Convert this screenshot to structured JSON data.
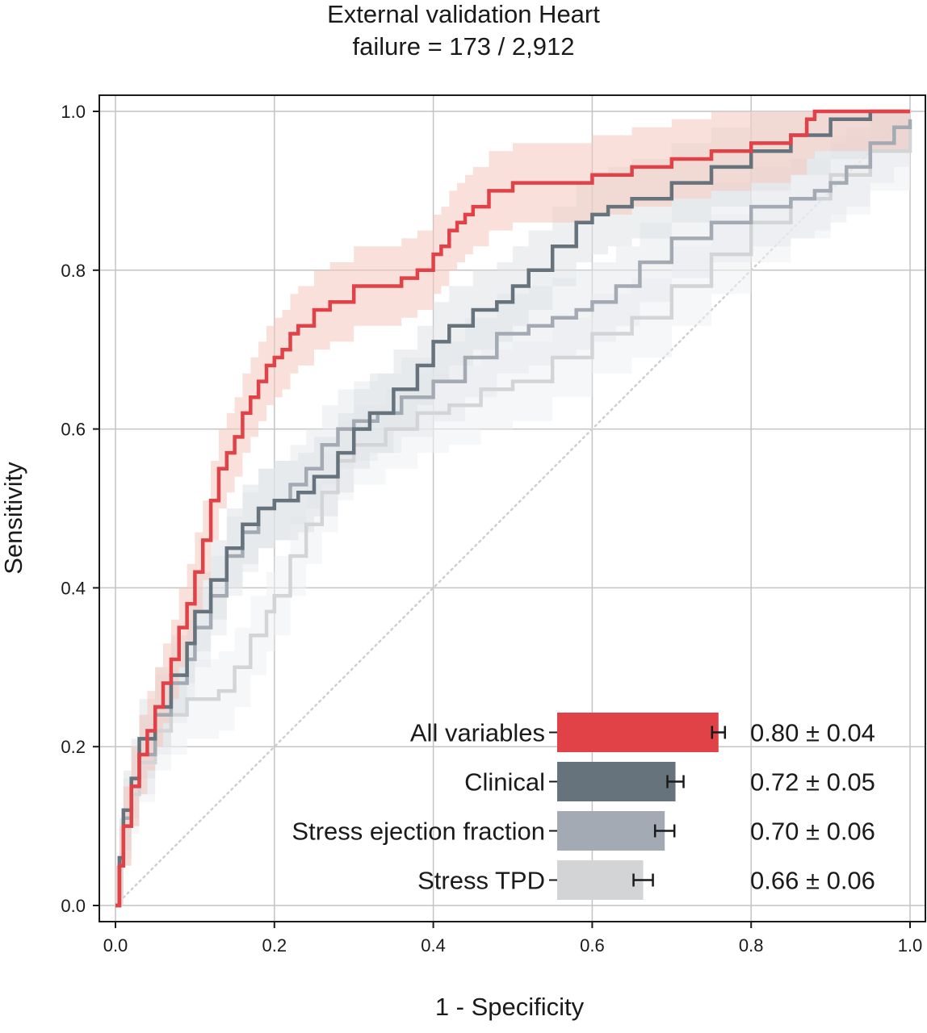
{
  "chart_data": {
    "type": "line",
    "title": "External validation Heart failure = 173 / 2,912",
    "title_lines": [
      "External validation Heart",
      "failure = 173 / 2,912"
    ],
    "xlabel": "1 - Specificity",
    "ylabel": "Sensitivity",
    "xlim": [
      0,
      1.0
    ],
    "ylim": [
      0,
      1.0
    ],
    "xticks": [
      "0.0",
      "0.2",
      "0.4",
      "0.6",
      "0.8",
      "1.0"
    ],
    "yticks": [
      "0.0",
      "0.2",
      "0.4",
      "0.6",
      "0.8",
      "1.0"
    ],
    "grid": true,
    "reference_line": {
      "x": [
        0,
        1
      ],
      "y": [
        0,
        1
      ],
      "style": "dotted"
    },
    "series": [
      {
        "name": "All variables",
        "color": "#e04248",
        "band_color": "#f4c6bc",
        "auc_label": "0.80 ± 0.04",
        "auc": 0.8,
        "auc_err": 0.04,
        "x": [
          0,
          0.005,
          0.01,
          0.02,
          0.03,
          0.04,
          0.05,
          0.06,
          0.07,
          0.08,
          0.09,
          0.1,
          0.11,
          0.12,
          0.13,
          0.14,
          0.15,
          0.16,
          0.17,
          0.18,
          0.19,
          0.2,
          0.21,
          0.22,
          0.23,
          0.25,
          0.27,
          0.3,
          0.33,
          0.36,
          0.38,
          0.4,
          0.41,
          0.42,
          0.43,
          0.44,
          0.45,
          0.47,
          0.5,
          0.55,
          0.6,
          0.65,
          0.7,
          0.75,
          0.8,
          0.85,
          0.87,
          0.88,
          0.89,
          1.0
        ],
        "y": [
          0,
          0.05,
          0.1,
          0.15,
          0.19,
          0.22,
          0.25,
          0.28,
          0.31,
          0.35,
          0.38,
          0.42,
          0.46,
          0.51,
          0.55,
          0.57,
          0.59,
          0.62,
          0.64,
          0.66,
          0.68,
          0.69,
          0.7,
          0.72,
          0.73,
          0.75,
          0.76,
          0.78,
          0.78,
          0.79,
          0.8,
          0.82,
          0.83,
          0.85,
          0.86,
          0.87,
          0.88,
          0.9,
          0.91,
          0.91,
          0.92,
          0.93,
          0.94,
          0.95,
          0.96,
          0.97,
          0.99,
          1.0,
          1.0,
          1.0
        ]
      },
      {
        "name": "Clinical",
        "color": "#66737c",
        "band_color": "#dfe2e6",
        "auc_label": "0.72 ± 0.05",
        "auc": 0.72,
        "auc_err": 0.05,
        "x": [
          0,
          0.005,
          0.01,
          0.02,
          0.03,
          0.05,
          0.07,
          0.09,
          0.1,
          0.12,
          0.14,
          0.16,
          0.18,
          0.2,
          0.23,
          0.25,
          0.28,
          0.3,
          0.32,
          0.35,
          0.38,
          0.4,
          0.42,
          0.45,
          0.48,
          0.5,
          0.52,
          0.55,
          0.58,
          0.6,
          0.62,
          0.65,
          0.7,
          0.75,
          0.8,
          0.85,
          0.9,
          0.95,
          1.0
        ],
        "y": [
          0,
          0.06,
          0.12,
          0.16,
          0.21,
          0.25,
          0.29,
          0.33,
          0.37,
          0.41,
          0.45,
          0.48,
          0.5,
          0.51,
          0.52,
          0.54,
          0.57,
          0.6,
          0.62,
          0.65,
          0.68,
          0.71,
          0.73,
          0.75,
          0.76,
          0.78,
          0.8,
          0.83,
          0.86,
          0.87,
          0.88,
          0.89,
          0.91,
          0.93,
          0.95,
          0.97,
          0.99,
          1.0,
          1.0
        ]
      },
      {
        "name": "Stress ejection fraction",
        "color": "#a4aab3",
        "band_color": "#e6e9ed",
        "auc_label": "0.70 ± 0.06",
        "auc": 0.7,
        "auc_err": 0.06,
        "x": [
          0,
          0.005,
          0.01,
          0.02,
          0.03,
          0.05,
          0.07,
          0.09,
          0.1,
          0.12,
          0.14,
          0.16,
          0.18,
          0.2,
          0.22,
          0.24,
          0.26,
          0.28,
          0.3,
          0.33,
          0.36,
          0.4,
          0.44,
          0.48,
          0.52,
          0.55,
          0.58,
          0.6,
          0.63,
          0.66,
          0.7,
          0.75,
          0.8,
          0.85,
          0.88,
          0.9,
          0.92,
          0.95,
          0.98,
          1.0
        ],
        "y": [
          0,
          0.06,
          0.11,
          0.15,
          0.19,
          0.24,
          0.28,
          0.31,
          0.35,
          0.39,
          0.44,
          0.47,
          0.5,
          0.51,
          0.53,
          0.55,
          0.58,
          0.6,
          0.61,
          0.62,
          0.64,
          0.66,
          0.69,
          0.72,
          0.73,
          0.74,
          0.75,
          0.76,
          0.78,
          0.81,
          0.84,
          0.86,
          0.88,
          0.89,
          0.9,
          0.91,
          0.93,
          0.96,
          0.98,
          0.99
        ]
      },
      {
        "name": "Stress TPD",
        "color": "#d3d4d6",
        "band_color": "#eef0f2",
        "auc_label": "0.66 ± 0.06",
        "auc": 0.66,
        "auc_err": 0.06,
        "x": [
          0,
          0.005,
          0.01,
          0.02,
          0.03,
          0.05,
          0.07,
          0.09,
          0.11,
          0.13,
          0.15,
          0.17,
          0.19,
          0.2,
          0.22,
          0.24,
          0.26,
          0.28,
          0.3,
          0.34,
          0.38,
          0.42,
          0.46,
          0.5,
          0.55,
          0.6,
          0.65,
          0.7,
          0.75,
          0.8,
          0.85,
          0.9,
          0.95,
          1.0
        ],
        "y": [
          0,
          0.05,
          0.1,
          0.14,
          0.18,
          0.22,
          0.24,
          0.26,
          0.26,
          0.27,
          0.3,
          0.34,
          0.37,
          0.39,
          0.44,
          0.48,
          0.52,
          0.56,
          0.58,
          0.6,
          0.62,
          0.63,
          0.65,
          0.66,
          0.69,
          0.72,
          0.74,
          0.78,
          0.82,
          0.86,
          0.89,
          0.92,
          0.95,
          0.98
        ]
      }
    ],
    "legend": {
      "placement": "bottom-right",
      "style": "horizontal AUC bars with error bars"
    }
  }
}
